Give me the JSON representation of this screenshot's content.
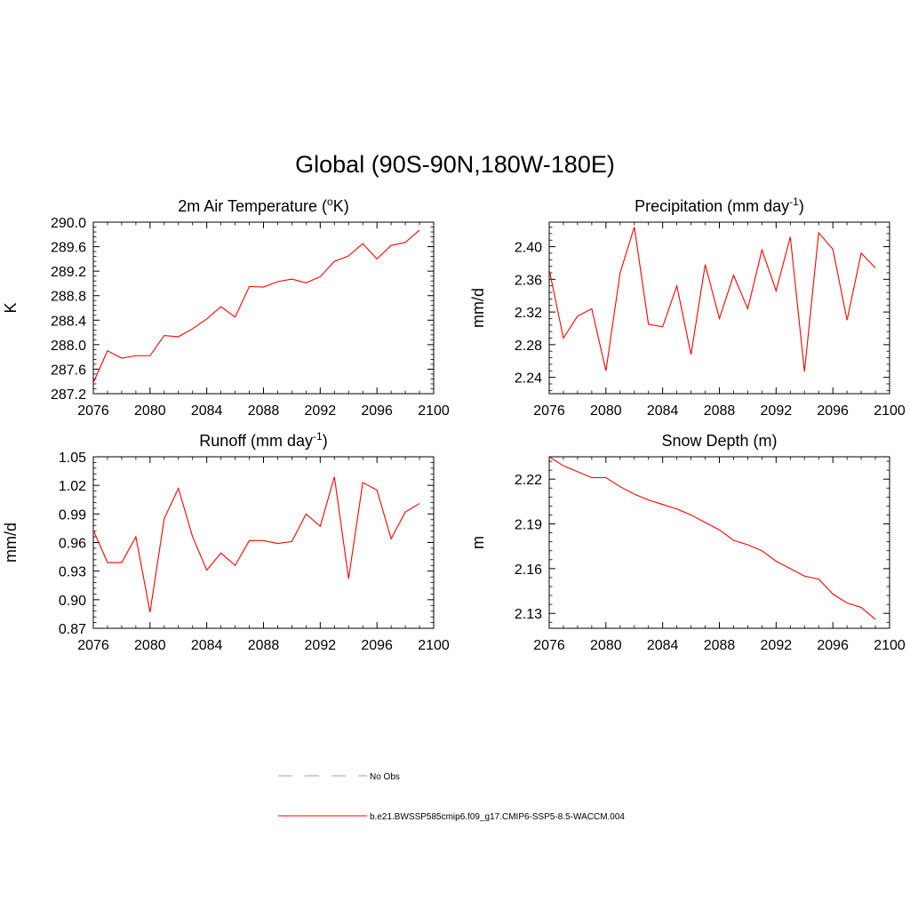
{
  "title": "Global (90S-90N,180W-180E)",
  "chart_data": [
    {
      "id": "temp",
      "type": "line",
      "title": "2m Air Temperature (",
      "title_sup": "o",
      "title_tail": "K)",
      "ylabel": "K",
      "xlim": [
        2076,
        2100
      ],
      "ylim": [
        287.2,
        290.0
      ],
      "xticks": [
        "2076",
        "2080",
        "2084",
        "2088",
        "2092",
        "2096",
        "2100"
      ],
      "yticks": [
        "287.2",
        "287.6",
        "288.0",
        "288.4",
        "288.8",
        "289.2",
        "289.6",
        "290.0"
      ],
      "color": "#ff0000",
      "x": [
        2076,
        2077,
        2078,
        2079,
        2080,
        2081,
        2082,
        2083,
        2084,
        2085,
        2086,
        2087,
        2088,
        2089,
        2090,
        2091,
        2092,
        2093,
        2094,
        2095,
        2096,
        2097,
        2098,
        2099
      ],
      "y": [
        287.38,
        287.9,
        287.78,
        287.82,
        287.82,
        288.15,
        288.13,
        288.26,
        288.42,
        288.62,
        288.45,
        288.95,
        288.94,
        289.03,
        289.07,
        289.01,
        289.11,
        289.36,
        289.45,
        289.65,
        289.4,
        289.62,
        289.67,
        289.87
      ]
    },
    {
      "id": "precip",
      "type": "line",
      "title": "Precipitation (mm day",
      "title_sup": "-1",
      "title_tail": ")",
      "ylabel": "mm/d",
      "xlim": [
        2076,
        2100
      ],
      "ylim": [
        2.22,
        2.43
      ],
      "xticks": [
        "2076",
        "2080",
        "2084",
        "2088",
        "2092",
        "2096",
        "2100"
      ],
      "yticks": [
        "2.24",
        "2.28",
        "2.32",
        "2.36",
        "2.40"
      ],
      "color": "#ff0000",
      "x": [
        2076,
        2077,
        2078,
        2079,
        2080,
        2081,
        2082,
        2083,
        2084,
        2085,
        2086,
        2087,
        2088,
        2089,
        2090,
        2091,
        2092,
        2093,
        2094,
        2095,
        2096,
        2097,
        2098,
        2099
      ],
      "y": [
        2.372,
        2.288,
        2.315,
        2.324,
        2.248,
        2.368,
        2.424,
        2.305,
        2.302,
        2.352,
        2.268,
        2.378,
        2.312,
        2.365,
        2.324,
        2.396,
        2.346,
        2.412,
        2.247,
        2.417,
        2.397,
        2.31,
        2.392,
        2.374
      ]
    },
    {
      "id": "runoff",
      "type": "line",
      "title": "Runoff (mm day",
      "title_sup": "-1",
      "title_tail": ")",
      "ylabel": "mm/d",
      "xlim": [
        2076,
        2100
      ],
      "ylim": [
        0.87,
        1.05
      ],
      "xticks": [
        "2076",
        "2080",
        "2084",
        "2088",
        "2092",
        "2096",
        "2100"
      ],
      "yticks": [
        "0.87",
        "0.90",
        "0.93",
        "0.96",
        "0.99",
        "1.02",
        "1.05"
      ],
      "color": "#ff0000",
      "x": [
        2076,
        2077,
        2078,
        2079,
        2080,
        2081,
        2082,
        2083,
        2084,
        2085,
        2086,
        2087,
        2088,
        2089,
        2090,
        2091,
        2092,
        2093,
        2094,
        2095,
        2096,
        2097,
        2098,
        2099
      ],
      "y": [
        0.973,
        0.939,
        0.939,
        0.966,
        0.887,
        0.985,
        1.017,
        0.966,
        0.931,
        0.949,
        0.936,
        0.962,
        0.962,
        0.959,
        0.961,
        0.99,
        0.977,
        1.029,
        0.922,
        1.023,
        1.015,
        0.964,
        0.992,
        1.001
      ]
    },
    {
      "id": "snow",
      "type": "line",
      "title": "Snow Depth (m)",
      "title_sup": "",
      "title_tail": "",
      "ylabel": "m",
      "xlim": [
        2076,
        2100
      ],
      "ylim": [
        2.12,
        2.235
      ],
      "xticks": [
        "2076",
        "2080",
        "2084",
        "2088",
        "2092",
        "2096",
        "2100"
      ],
      "yticks": [
        "2.13",
        "2.16",
        "2.19",
        "2.22"
      ],
      "color": "#ff0000",
      "x": [
        2076,
        2077,
        2078,
        2079,
        2080,
        2081,
        2082,
        2083,
        2084,
        2085,
        2086,
        2087,
        2088,
        2089,
        2090,
        2091,
        2092,
        2093,
        2094,
        2095,
        2096,
        2097,
        2098,
        2099
      ],
      "y": [
        2.235,
        2.229,
        2.225,
        2.221,
        2.221,
        2.215,
        2.21,
        2.206,
        2.203,
        2.2,
        2.196,
        2.191,
        2.186,
        2.179,
        2.176,
        2.172,
        2.165,
        2.16,
        2.155,
        2.153,
        2.143,
        2.137,
        2.134,
        2.126
      ]
    }
  ],
  "legend": [
    {
      "label": "No Obs",
      "color": "#9999dd",
      "dash": "dashed"
    },
    {
      "label": "b.e21.BWSSP585cmip6.f09_g17.CMIP6-SSP5-8.5-WACCM.004",
      "color": "#ff0000",
      "dash": "solid"
    }
  ]
}
